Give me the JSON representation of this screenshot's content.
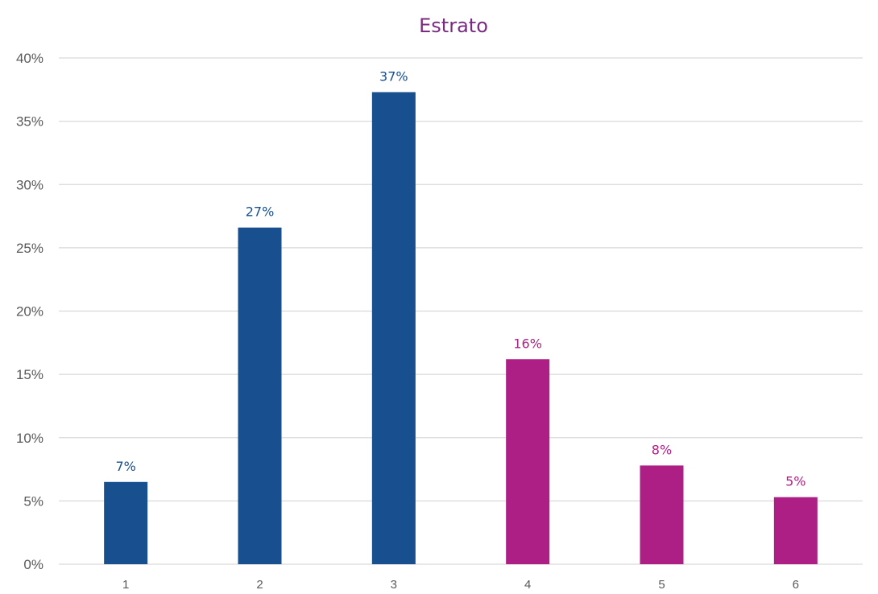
{
  "chart_data": {
    "type": "bar",
    "title": "Estrato",
    "xlabel": "",
    "ylabel": "",
    "categories": [
      "1",
      "2",
      "3",
      "4",
      "5",
      "6"
    ],
    "values": [
      6.5,
      26.6,
      37.3,
      16.2,
      7.8,
      5.3
    ],
    "data_labels": [
      "7%",
      "27%",
      "37%",
      "16%",
      "8%",
      "5%"
    ],
    "bar_colors": [
      "#174f8f",
      "#174f8f",
      "#174f8f",
      "#ad1f85",
      "#ad1f85",
      "#ad1f85"
    ],
    "ylim": [
      0,
      40
    ],
    "yticks": [
      0,
      5,
      10,
      15,
      20,
      25,
      30,
      35,
      40
    ],
    "ytick_labels": [
      "0%",
      "5%",
      "10%",
      "15%",
      "20%",
      "25%",
      "30%",
      "35%",
      "40%"
    ],
    "grid": true,
    "legend": "none"
  },
  "colors": {
    "title": "#7b2a82",
    "grid": "#d9d9d9",
    "axis_text": "#595959"
  }
}
